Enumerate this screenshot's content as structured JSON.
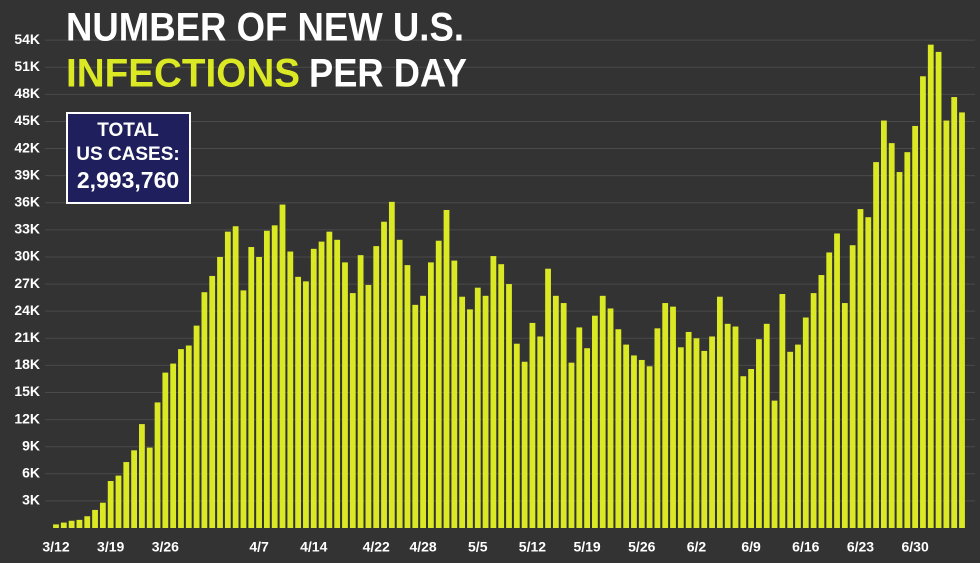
{
  "chart_data": {
    "type": "bar",
    "title": [
      "NUMBER OF NEW U.S.",
      "INFECTIONS",
      "PER DAY"
    ],
    "annotation": [
      "TOTAL",
      "US CASES:",
      "2,993,760"
    ],
    "categories": [
      "3/12",
      null,
      null,
      null,
      null,
      null,
      null,
      "3/19",
      null,
      null,
      null,
      null,
      null,
      null,
      "3/26",
      null,
      null,
      null,
      null,
      null,
      null,
      null,
      null,
      null,
      null,
      null,
      "4/7",
      null,
      null,
      null,
      null,
      null,
      null,
      "4/14",
      null,
      null,
      null,
      null,
      null,
      null,
      null,
      "4/22",
      null,
      null,
      null,
      null,
      null,
      "4/28",
      null,
      null,
      null,
      null,
      null,
      null,
      "5/5",
      null,
      null,
      null,
      null,
      null,
      null,
      "5/12",
      null,
      null,
      null,
      null,
      null,
      null,
      "5/19",
      null,
      null,
      null,
      null,
      null,
      null,
      "5/26",
      null,
      null,
      null,
      null,
      null,
      null,
      "6/2",
      null,
      null,
      null,
      null,
      null,
      null,
      "6/9",
      null,
      null,
      null,
      null,
      null,
      null,
      "6/16",
      null,
      null,
      null,
      null,
      null,
      null,
      "6/23",
      null,
      null,
      null,
      null,
      null,
      null,
      "6/30",
      null,
      null,
      null,
      null,
      null,
      null
    ],
    "values": [
      400,
      600,
      800,
      900,
      1300,
      2000,
      2800,
      5200,
      5800,
      7300,
      8600,
      11500,
      8900,
      13900,
      17200,
      18200,
      19800,
      20200,
      22400,
      26100,
      27900,
      30000,
      32800,
      33400,
      26300,
      31100,
      30000,
      32900,
      33500,
      35800,
      30600,
      27800,
      27300,
      30900,
      31700,
      32800,
      31900,
      29400,
      26000,
      30200,
      26900,
      31200,
      33900,
      36100,
      31900,
      29100,
      24700,
      25700,
      29400,
      31800,
      35200,
      29600,
      25600,
      24200,
      26600,
      25700,
      30100,
      29200,
      27000,
      20400,
      18400,
      22700,
      21200,
      28700,
      25700,
      24900,
      18300,
      22200,
      19900,
      23500,
      25700,
      24300,
      22000,
      20300,
      19100,
      18600,
      17900,
      22100,
      24900,
      24500,
      20000,
      21700,
      21000,
      19600,
      21200,
      25600,
      22600,
      22300,
      16800,
      17600,
      20900,
      22600,
      14100,
      25900,
      19500,
      20300,
      23300,
      26000,
      28000,
      30500,
      32600,
      24900,
      31300,
      35300,
      34400,
      40500,
      45100,
      42600,
      39400,
      41600,
      44500,
      50000,
      53500,
      52700,
      45100,
      47700,
      46000
    ],
    "color": "#dbe824",
    "ylim": [
      0,
      58000
    ],
    "yticks": [
      {
        "value": 3000,
        "label": "3K"
      },
      {
        "value": 6000,
        "label": "6K"
      },
      {
        "value": 9000,
        "label": "9K"
      },
      {
        "value": 12000,
        "label": "12K"
      },
      {
        "value": 15000,
        "label": "15K"
      },
      {
        "value": 18000,
        "label": "18K"
      },
      {
        "value": 21000,
        "label": "21K"
      },
      {
        "value": 24000,
        "label": "24K"
      },
      {
        "value": 27000,
        "label": "27K"
      },
      {
        "value": 30000,
        "label": "30K"
      },
      {
        "value": 33000,
        "label": "33K"
      },
      {
        "value": 36000,
        "label": "36K"
      },
      {
        "value": 39000,
        "label": "39K"
      },
      {
        "value": 42000,
        "label": "42K"
      },
      {
        "value": 45000,
        "label": "45K"
      },
      {
        "value": 48000,
        "label": "48K"
      },
      {
        "value": 51000,
        "label": "51K"
      },
      {
        "value": 54000,
        "label": "54K"
      }
    ],
    "grid": true
  }
}
